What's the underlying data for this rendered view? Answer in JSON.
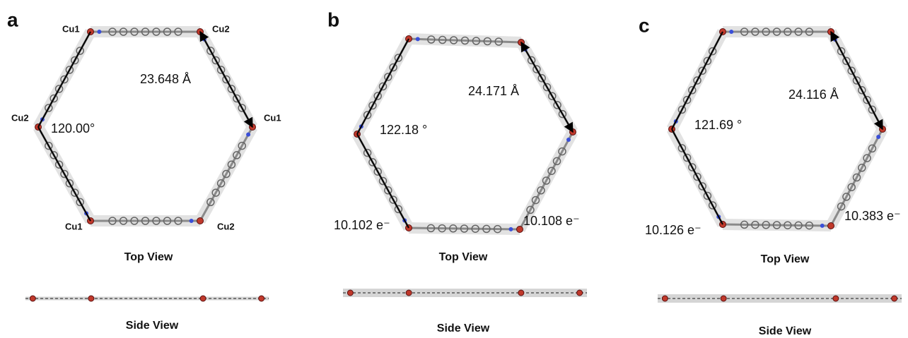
{
  "panels": [
    {
      "label": "a",
      "site_labels": [
        "Cu1",
        "Cu2",
        "Cu2",
        "Cu1",
        "Cu1",
        "Cu2"
      ],
      "distance": "23.648 Å",
      "angle": "120.00°",
      "top_view": "Top View",
      "side_view": "Side View"
    },
    {
      "label": "b",
      "distance": "24.171 Å",
      "angle": "122.18 °",
      "charges": [
        "10.102 e⁻",
        "10.108 e⁻"
      ],
      "top_view": "Top View",
      "side_view": "Side View"
    },
    {
      "label": "c",
      "distance": "24.116 Å",
      "angle": "121.69 °",
      "charges": [
        "10.126 e⁻",
        "10.383 e⁻"
      ],
      "top_view": "Top View",
      "side_view": "Side View"
    }
  ]
}
